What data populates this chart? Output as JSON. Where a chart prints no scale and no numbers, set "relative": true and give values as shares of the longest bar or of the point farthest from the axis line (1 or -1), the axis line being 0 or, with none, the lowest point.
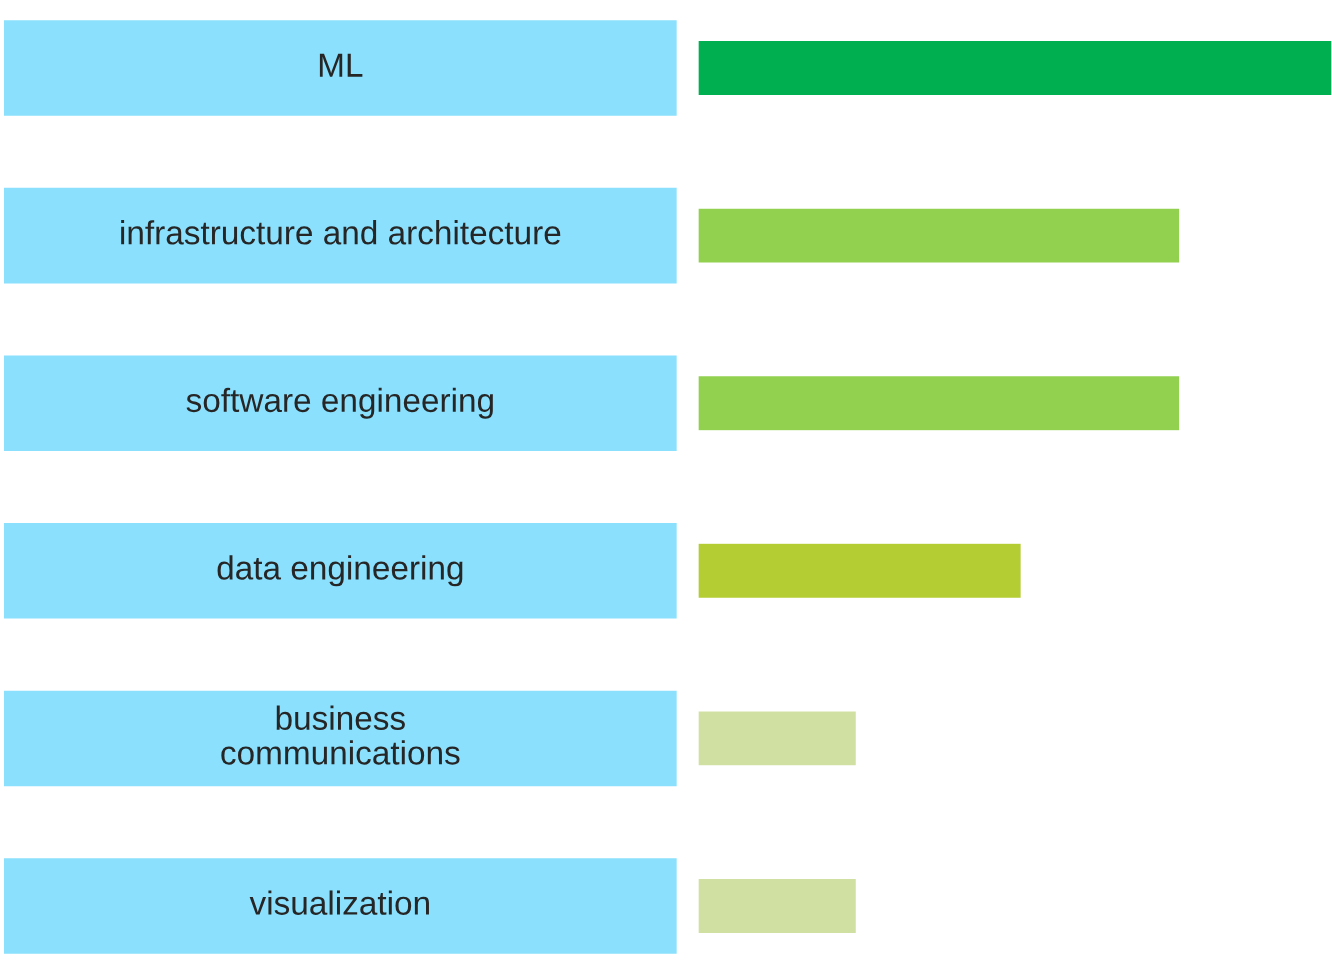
{
  "chart_data": {
    "type": "bar",
    "orientation": "horizontal",
    "relative": true,
    "categories": [
      "ML",
      "infrastructure and architecture",
      "software engineering",
      "data engineering",
      "business\ncommunications",
      "visualization"
    ],
    "values": [
      1,
      0.76,
      0.76,
      0.51,
      0.25,
      0.25
    ],
    "colors": [
      "#00b050",
      "#92d050",
      "#92d050",
      "#b3cd33",
      "#d0e0a3",
      "#d0e0a3"
    ]
  }
}
